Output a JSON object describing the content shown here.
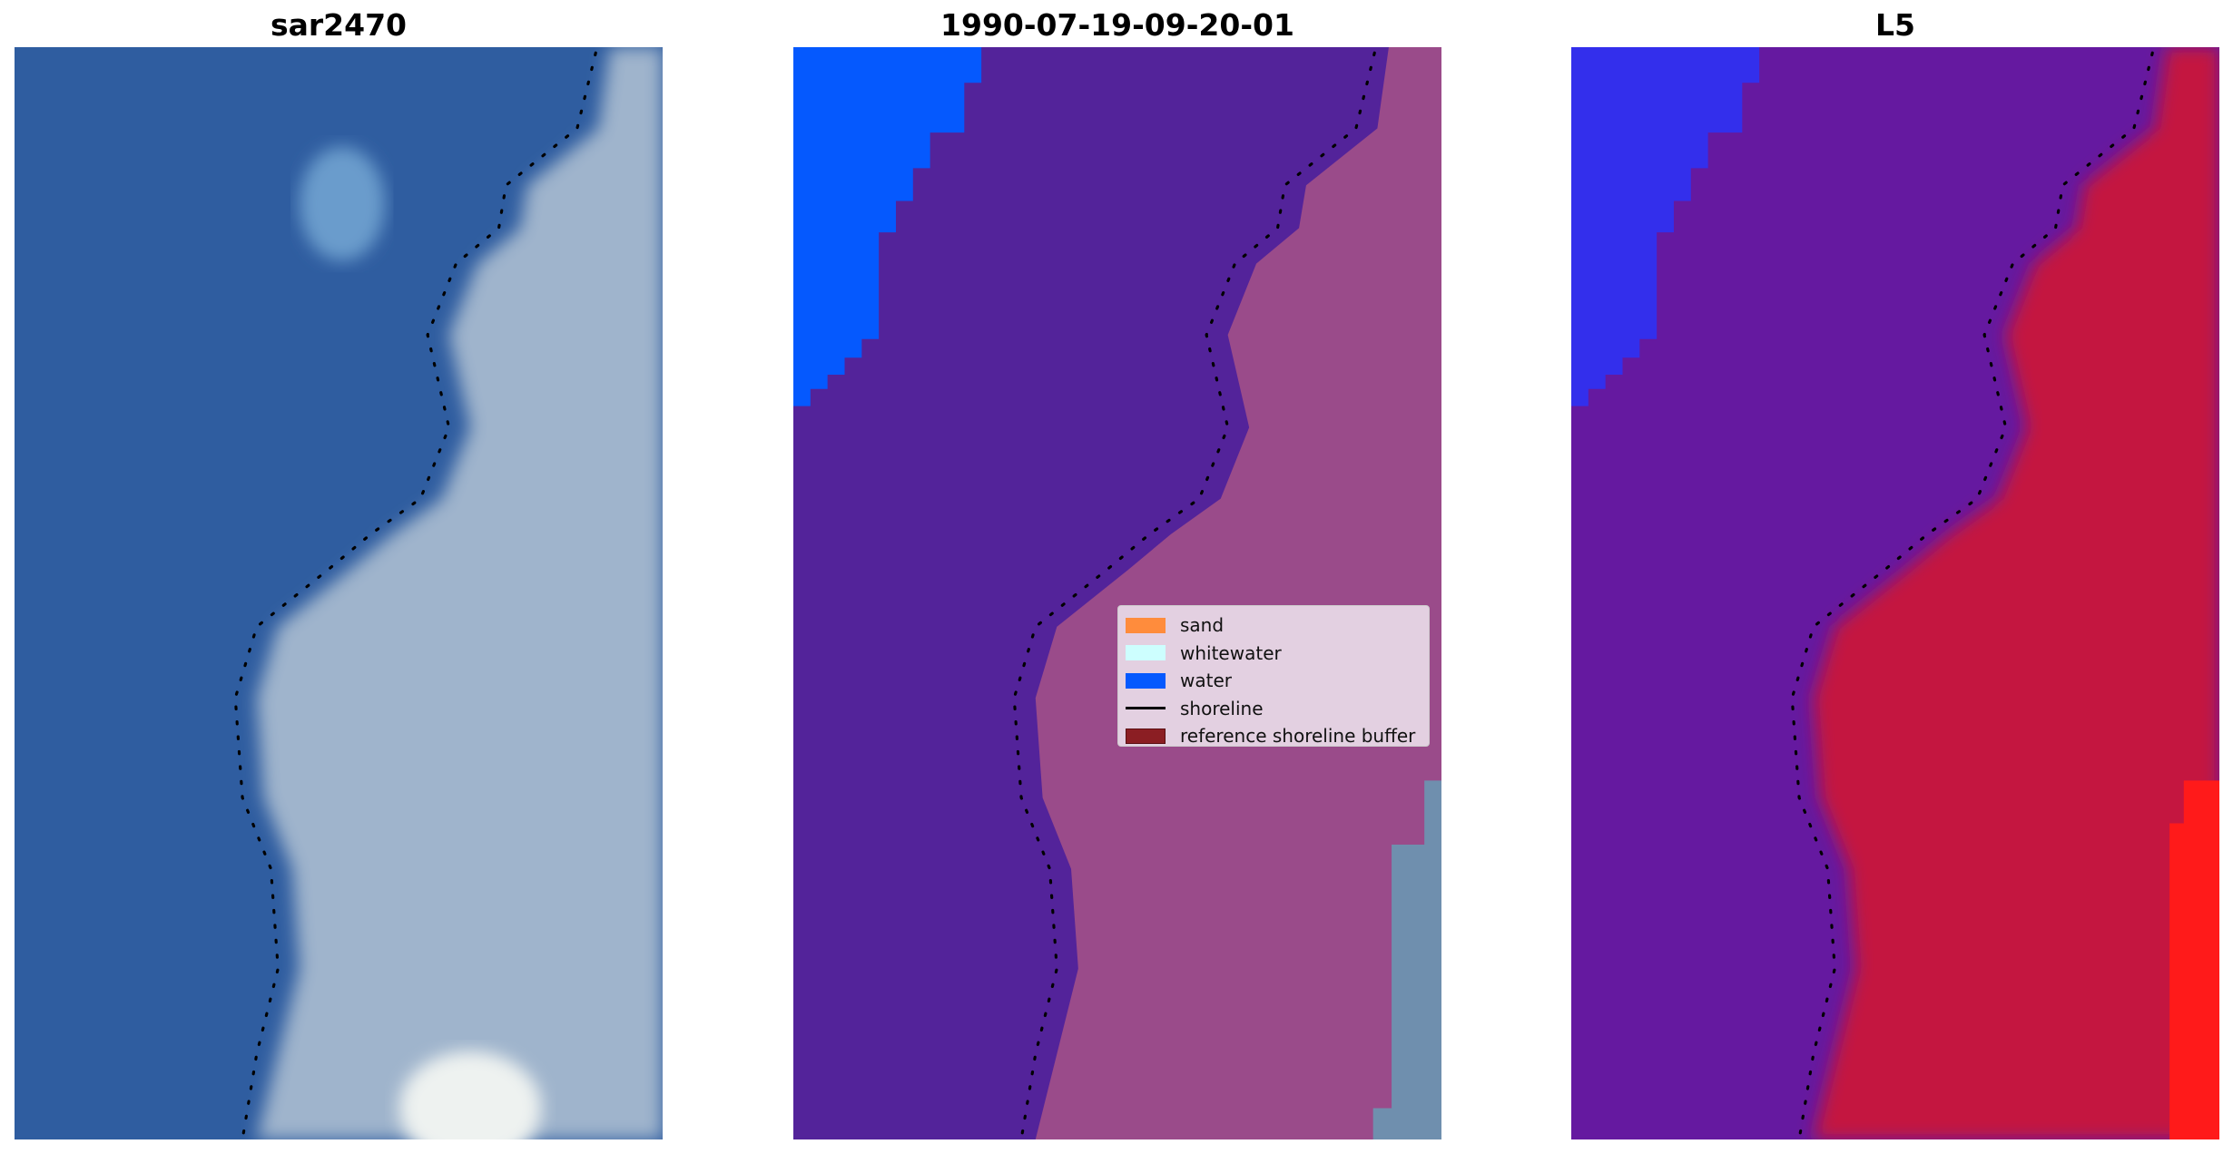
{
  "panels": [
    {
      "title": "sar2470",
      "colors": {
        "left": "#2f5da0",
        "right": "#9fb4cc",
        "edge": "#c8dbe8"
      }
    },
    {
      "title": "1990-07-19-09-20-01",
      "colors": {
        "water": "#0559fe",
        "left": "#53239a",
        "right": "#9a4b8a",
        "corner": "#6f8fae"
      }
    },
    {
      "title": "L5",
      "colors": {
        "water": "#2d32f4",
        "left": "#6519a0",
        "right": "#c4163f",
        "corner": "#ff1a1a"
      }
    }
  ],
  "legend": {
    "items": [
      {
        "label": "sand",
        "color": "#ff8c3c",
        "kind": "patch"
      },
      {
        "label": "whitewater",
        "color": "#cdfefe",
        "kind": "patch"
      },
      {
        "label": "water",
        "color": "#0559fe",
        "kind": "patch"
      },
      {
        "label": "shoreline",
        "color": "#000000",
        "kind": "line"
      },
      {
        "label": "reference shoreline buffer",
        "color": "#8b1e23",
        "kind": "patch"
      }
    ]
  }
}
